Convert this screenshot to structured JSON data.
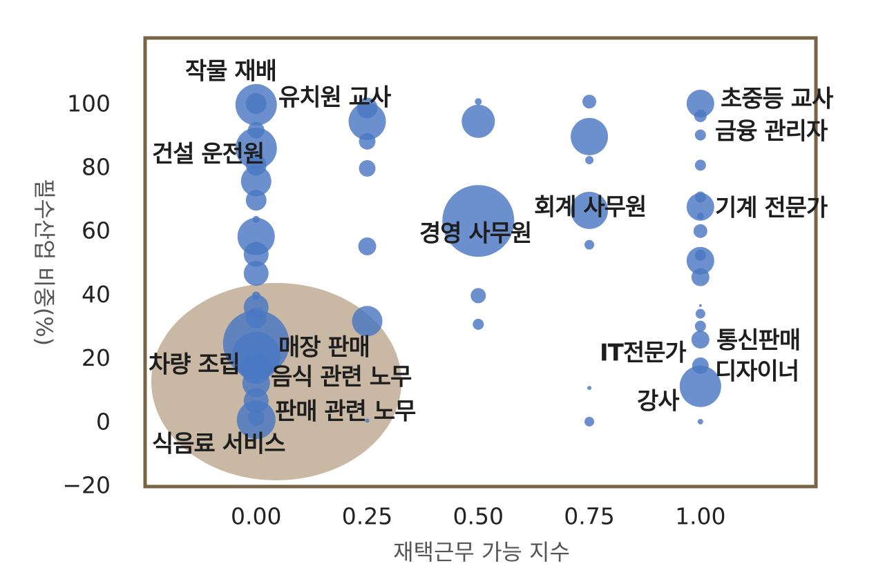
{
  "chart_data": {
    "type": "bubble",
    "x_label": "재택근무 가능 지수",
    "y_label": "필수산업 비중(%)",
    "color": "#4a78c2",
    "xlim": [
      -0.25,
      1.26
    ],
    "ylim": [
      -20,
      121
    ],
    "xticks": [
      {
        "value": 0,
        "label": "0.00"
      },
      {
        "value": 0.25,
        "label": "0.25"
      },
      {
        "value": 0.5,
        "label": "0.50"
      },
      {
        "value": 0.75,
        "label": "0.75"
      },
      {
        "value": 1,
        "label": "1.00"
      }
    ],
    "yticks": [
      {
        "value": -20,
        "label": "−20"
      },
      0,
      20,
      40,
      60,
      80,
      100
    ],
    "x": [
      0,
      0,
      0,
      0,
      0,
      0,
      0,
      0,
      0,
      0,
      0,
      0,
      0,
      0,
      0,
      0,
      0,
      0,
      0,
      0,
      0,
      0.25,
      0.25,
      0.25,
      0.25,
      0.25,
      0.25,
      0.25,
      0.5,
      0.5,
      0.5,
      0.5,
      0.5,
      0.75,
      0.75,
      0.75,
      0.75,
      0.75,
      0.75,
      0.75,
      1,
      1,
      1,
      1,
      1,
      1,
      1,
      1,
      1,
      1,
      1,
      1,
      1,
      1,
      1,
      1,
      1,
      1
    ],
    "y": [
      100,
      100.4,
      92,
      86.3,
      81,
      76,
      70,
      64,
      58.6,
      53,
      47,
      40,
      36.4,
      33,
      25,
      21,
      17,
      12.5,
      7,
      1,
      1.7,
      99,
      94.8,
      88.5,
      80,
      55.5,
      32,
      0.7,
      101,
      94.8,
      63.5,
      40,
      31,
      101,
      90,
      82.6,
      66.8,
      56,
      11,
      0.4,
      100.4,
      96.5,
      90.5,
      81,
      71,
      67.9,
      65,
      60.3,
      51,
      52.7,
      45.8,
      36.9,
      34.3,
      30.4,
      26.2,
      18,
      11.5,
      0.4
    ],
    "sizes": [
      30,
      15,
      12,
      30,
      15,
      22,
      15,
      5,
      27,
      18,
      18,
      6,
      18,
      15,
      48,
      35,
      22,
      20,
      18,
      28,
      12,
      15,
      27,
      12,
      12,
      13,
      22,
      3,
      5,
      24,
      52,
      11,
      8,
      10,
      27,
      6,
      27,
      7,
      3,
      7,
      20,
      9,
      8,
      8,
      8,
      20,
      5,
      10,
      20,
      8,
      13,
      2,
      7,
      8,
      13,
      12,
      30,
      4
    ],
    "annotations": [
      "작물 재배",
      "유치원 교사",
      "건설 운전원",
      "초중등 교사",
      "금융 관리자",
      "회계 사무원",
      "기계 전문가",
      "경영 사무원",
      "매장 판매",
      "통신판매",
      "IT전문가",
      "차량 조립",
      "디자이너",
      "음식 관련 노무",
      "강사",
      "판매 관련 노무",
      "식음료 서비스"
    ]
  }
}
